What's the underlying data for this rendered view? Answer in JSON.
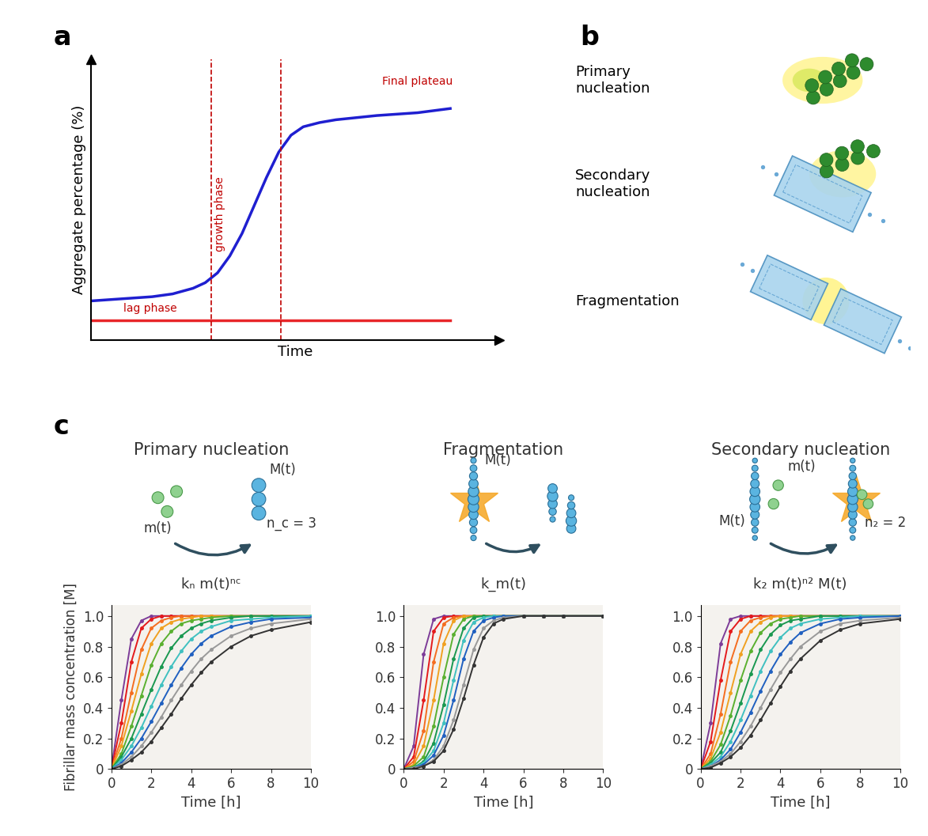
{
  "panel_labels": [
    "a",
    "b",
    "c"
  ],
  "diagram": {
    "labels": [
      "Primary\nnucleation",
      "Secondary\nnucleation",
      "Fragmentation"
    ]
  },
  "chart_data": [
    {
      "type": "line",
      "xlabel": "Time",
      "ylabel": "Aggregate percentage (%)",
      "xlim": [
        0,
        100
      ],
      "ylim": [
        0,
        100
      ],
      "tick_labels": false,
      "annotations": [
        "lag phase",
        "growth phase",
        "Final plateau"
      ],
      "vlines": [
        29.5,
        46.6
      ],
      "series": [
        {
          "color": "#1f1fd0",
          "x": [
            0,
            5,
            10,
            15,
            20,
            25,
            28,
            31,
            34,
            37,
            40,
            43,
            46,
            49,
            52,
            56,
            60,
            70,
            80,
            88
          ],
          "values": [
            14,
            14.5,
            15,
            15.5,
            16.5,
            18.5,
            20.5,
            24,
            30,
            38,
            48,
            58,
            67,
            73,
            76,
            77.5,
            78.5,
            80,
            81,
            82.5
          ]
        },
        {
          "color": "#e8262a",
          "x": [
            0,
            88
          ],
          "values": [
            7,
            7
          ]
        }
      ]
    },
    {
      "type": "line",
      "title": "Primary nucleation",
      "ylabel": "Fibrillar mass concentration [M]",
      "xlabel": "Time [h]",
      "xlim": [
        0,
        10
      ],
      "ylim": [
        0,
        1.07
      ],
      "xticks": [
        0,
        2,
        4,
        6,
        8,
        10
      ],
      "yticks": [
        0,
        0.2,
        0.4,
        0.6,
        0.8,
        1.0
      ],
      "marker": "o",
      "schematic": {
        "monomer_label": "m(t)",
        "aggregate_label": "M(t)",
        "nucleus_label": "n_c = 3",
        "rate_law": "kₙ m(t)ⁿᶜ"
      },
      "x": [
        0,
        0.5,
        1,
        1.5,
        2,
        2.5,
        3,
        3.5,
        4,
        4.5,
        5,
        6,
        7,
        8,
        10
      ],
      "series": [
        {
          "color": "#7d3c98",
          "values": [
            0,
            0.45,
            0.85,
            0.97,
            1,
            1,
            1,
            1,
            1,
            1,
            1,
            1,
            1,
            1,
            1
          ]
        },
        {
          "color": "#e41a1c",
          "values": [
            0,
            0.3,
            0.7,
            0.92,
            0.98,
            1,
            1,
            1,
            1,
            1,
            1,
            1,
            1,
            1,
            1
          ]
        },
        {
          "color": "#f46d20",
          "values": [
            0,
            0.2,
            0.5,
            0.78,
            0.92,
            0.97,
            0.99,
            1,
            1,
            1,
            1,
            1,
            1,
            1,
            1
          ]
        },
        {
          "color": "#f0a020",
          "values": [
            0,
            0.15,
            0.38,
            0.62,
            0.82,
            0.92,
            0.96,
            0.98,
            0.99,
            1,
            1,
            1,
            1,
            1,
            1
          ]
        },
        {
          "color": "#5ab030",
          "values": [
            0,
            0.1,
            0.28,
            0.48,
            0.68,
            0.82,
            0.9,
            0.95,
            0.97,
            0.98,
            0.99,
            1,
            1,
            1,
            1
          ]
        },
        {
          "color": "#1a9850",
          "values": [
            0,
            0.08,
            0.2,
            0.36,
            0.52,
            0.67,
            0.79,
            0.87,
            0.92,
            0.95,
            0.97,
            0.99,
            1,
            1,
            1
          ]
        },
        {
          "color": "#40c0c0",
          "values": [
            0,
            0.06,
            0.15,
            0.27,
            0.41,
            0.55,
            0.67,
            0.77,
            0.85,
            0.9,
            0.93,
            0.97,
            0.98,
            0.99,
            1
          ]
        },
        {
          "color": "#2060c0",
          "values": [
            0,
            0.04,
            0.11,
            0.2,
            0.31,
            0.43,
            0.55,
            0.66,
            0.75,
            0.82,
            0.87,
            0.93,
            0.96,
            0.98,
            0.99
          ]
        },
        {
          "color": "#999999",
          "values": [
            0,
            0.03,
            0.08,
            0.15,
            0.24,
            0.34,
            0.45,
            0.55,
            0.64,
            0.72,
            0.78,
            0.87,
            0.92,
            0.95,
            0.98
          ]
        },
        {
          "color": "#333333",
          "values": [
            0,
            0.02,
            0.06,
            0.11,
            0.18,
            0.27,
            0.36,
            0.46,
            0.55,
            0.63,
            0.7,
            0.8,
            0.87,
            0.91,
            0.96
          ]
        }
      ]
    },
    {
      "type": "line",
      "title": "Fragmentation",
      "xlabel": "Time [h]",
      "xlim": [
        0,
        10
      ],
      "ylim": [
        0,
        1.07
      ],
      "xticks": [
        0,
        2,
        4,
        6,
        8,
        10
      ],
      "yticks": [
        0,
        0.2,
        0.4,
        0.6,
        0.8,
        1.0
      ],
      "marker": "o",
      "schematic": {
        "aggregate_label": "M(t)",
        "rate_law": "k_m(t)"
      },
      "x": [
        0,
        0.5,
        1,
        1.5,
        2,
        2.5,
        3,
        3.5,
        4,
        4.5,
        5,
        6,
        7,
        8,
        10
      ],
      "series": [
        {
          "color": "#7d3c98",
          "values": [
            0,
            0.15,
            0.75,
            0.98,
            1,
            1,
            1,
            1,
            1,
            1,
            1,
            1,
            1,
            1,
            1
          ]
        },
        {
          "color": "#e41a1c",
          "values": [
            0,
            0.08,
            0.45,
            0.9,
            0.99,
            1,
            1,
            1,
            1,
            1,
            1,
            1,
            1,
            1,
            1
          ]
        },
        {
          "color": "#f46d20",
          "values": [
            0,
            0.05,
            0.25,
            0.7,
            0.95,
            0.99,
            1,
            1,
            1,
            1,
            1,
            1,
            1,
            1,
            1
          ]
        },
        {
          "color": "#f0a020",
          "values": [
            0,
            0.03,
            0.15,
            0.45,
            0.82,
            0.97,
            1,
            1,
            1,
            1,
            1,
            1,
            1,
            1,
            1
          ]
        },
        {
          "color": "#5ab030",
          "values": [
            0,
            0.02,
            0.08,
            0.28,
            0.6,
            0.88,
            0.98,
            1,
            1,
            1,
            1,
            1,
            1,
            1,
            1
          ]
        },
        {
          "color": "#1a9850",
          "values": [
            0,
            0.01,
            0.05,
            0.17,
            0.42,
            0.72,
            0.92,
            0.99,
            1,
            1,
            1,
            1,
            1,
            1,
            1
          ]
        },
        {
          "color": "#40c0c0",
          "values": [
            0,
            0.01,
            0.04,
            0.12,
            0.3,
            0.58,
            0.84,
            0.96,
            0.99,
            1,
            1,
            1,
            1,
            1,
            1
          ]
        },
        {
          "color": "#2060c0",
          "values": [
            0,
            0.01,
            0.03,
            0.09,
            0.22,
            0.45,
            0.72,
            0.9,
            0.97,
            0.99,
            1,
            1,
            1,
            1,
            1
          ]
        },
        {
          "color": "#999999",
          "values": [
            0,
            0.01,
            0.02,
            0.06,
            0.15,
            0.32,
            0.55,
            0.78,
            0.92,
            0.97,
            0.99,
            1,
            1,
            1,
            1
          ]
        },
        {
          "color": "#333333",
          "values": [
            0,
            0,
            0.02,
            0.05,
            0.12,
            0.26,
            0.46,
            0.68,
            0.86,
            0.95,
            0.98,
            1,
            1,
            1,
            1
          ]
        }
      ]
    },
    {
      "type": "line",
      "title": "Secondary nucleation",
      "xlabel": "Time [h]",
      "xlim": [
        0,
        10
      ],
      "ylim": [
        0,
        1.07
      ],
      "xticks": [
        0,
        2,
        4,
        6,
        8,
        10
      ],
      "yticks": [
        0,
        0.2,
        0.4,
        0.6,
        0.8,
        1.0
      ],
      "marker": "o",
      "schematic": {
        "monomer_label": "m(t)",
        "aggregate_label": "M(t)",
        "nucleus_label": "n₂ = 2",
        "rate_law": "k₂ m(t)ⁿ² M(t)"
      },
      "x": [
        0,
        0.5,
        1,
        1.5,
        2,
        2.5,
        3,
        3.5,
        4,
        4.5,
        5,
        6,
        7,
        8,
        10
      ],
      "series": [
        {
          "color": "#7d3c98",
          "values": [
            0,
            0.3,
            0.82,
            0.98,
            1,
            1,
            1,
            1,
            1,
            1,
            1,
            1,
            1,
            1,
            1
          ]
        },
        {
          "color": "#e41a1c",
          "values": [
            0,
            0.18,
            0.58,
            0.9,
            0.98,
            1,
            1,
            1,
            1,
            1,
            1,
            1,
            1,
            1,
            1
          ]
        },
        {
          "color": "#f46d20",
          "values": [
            0,
            0.1,
            0.36,
            0.7,
            0.9,
            0.97,
            0.99,
            1,
            1,
            1,
            1,
            1,
            1,
            1,
            1
          ]
        },
        {
          "color": "#f0a020",
          "values": [
            0,
            0.07,
            0.24,
            0.5,
            0.75,
            0.9,
            0.96,
            0.99,
            1,
            1,
            1,
            1,
            1,
            1,
            1
          ]
        },
        {
          "color": "#5ab030",
          "values": [
            0,
            0.05,
            0.16,
            0.35,
            0.58,
            0.77,
            0.89,
            0.95,
            0.98,
            0.99,
            1,
            1,
            1,
            1,
            1
          ]
        },
        {
          "color": "#1a9850",
          "values": [
            0,
            0.04,
            0.11,
            0.25,
            0.43,
            0.62,
            0.78,
            0.88,
            0.94,
            0.97,
            0.98,
            1,
            1,
            1,
            1
          ]
        },
        {
          "color": "#40c0c0",
          "values": [
            0,
            0.03,
            0.08,
            0.18,
            0.32,
            0.48,
            0.64,
            0.77,
            0.86,
            0.92,
            0.95,
            0.98,
            0.99,
            1,
            1
          ]
        },
        {
          "color": "#2060c0",
          "values": [
            0,
            0.02,
            0.06,
            0.13,
            0.24,
            0.37,
            0.51,
            0.64,
            0.75,
            0.83,
            0.89,
            0.95,
            0.98,
            0.99,
            1
          ]
        },
        {
          "color": "#999999",
          "values": [
            0,
            0.02,
            0.05,
            0.1,
            0.18,
            0.28,
            0.4,
            0.52,
            0.63,
            0.72,
            0.8,
            0.9,
            0.95,
            0.97,
            0.99
          ]
        },
        {
          "color": "#333333",
          "values": [
            0,
            0.01,
            0.04,
            0.08,
            0.14,
            0.22,
            0.32,
            0.43,
            0.54,
            0.64,
            0.72,
            0.84,
            0.91,
            0.95,
            0.98
          ]
        }
      ]
    }
  ]
}
